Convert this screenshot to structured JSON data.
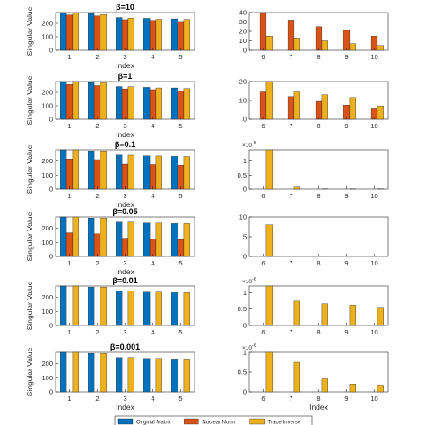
{
  "colors": {
    "original": "#0072BD",
    "nuclear": "#D95319",
    "trace": "#EDB120",
    "axis": "#262626"
  },
  "legend": [
    "Original Matrix",
    "Nuclear Norm",
    "Trace Inverse"
  ],
  "chart_data": [
    {
      "type": "bar",
      "title": "β=10",
      "ylabel": "Singular Value",
      "xlabel": "Index",
      "categories": [
        "1",
        "2",
        "3",
        "4",
        "5"
      ],
      "ylim": [
        0,
        280
      ],
      "yticks": [
        0,
        100,
        200
      ],
      "series": [
        {
          "name": "Original Matrix",
          "values": [
            280,
            272,
            243,
            237,
            233
          ]
        },
        {
          "name": "Nuclear Norm",
          "values": [
            262,
            255,
            227,
            222,
            214
          ]
        },
        {
          "name": "Trace Inverse",
          "values": [
            275,
            264,
            238,
            230,
            229
          ]
        }
      ]
    },
    {
      "type": "bar",
      "title": "",
      "ylabel": "",
      "xlabel": "",
      "categories": [
        "6",
        "7",
        "8",
        "9",
        "10"
      ],
      "ylim": [
        0,
        40
      ],
      "yticks": [
        0,
        10,
        20,
        30,
        40
      ],
      "series": [
        {
          "name": "Original Matrix",
          "values": [
            0,
            0,
            0,
            0,
            0
          ]
        },
        {
          "name": "Nuclear Norm",
          "values": [
            40,
            32,
            25,
            21,
            15
          ]
        },
        {
          "name": "Trace Inverse",
          "values": [
            15,
            13,
            10,
            7,
            5
          ]
        }
      ]
    },
    {
      "type": "bar",
      "title": "β=1",
      "ylabel": "Singular Value",
      "xlabel": "Index",
      "categories": [
        "1",
        "2",
        "3",
        "4",
        "5"
      ],
      "ylim": [
        0,
        280
      ],
      "yticks": [
        0,
        100,
        200
      ],
      "series": [
        {
          "name": "Original Matrix",
          "values": [
            280,
            272,
            243,
            237,
            233
          ]
        },
        {
          "name": "Nuclear Norm",
          "values": [
            258,
            250,
            226,
            220,
            212
          ]
        },
        {
          "name": "Trace Inverse",
          "values": [
            280,
            270,
            242,
            233,
            228
          ]
        }
      ]
    },
    {
      "type": "bar",
      "title": "",
      "ylabel": "",
      "xlabel": "",
      "categories": [
        "6",
        "7",
        "8",
        "9",
        "10"
      ],
      "ylim": [
        0,
        20
      ],
      "yticks": [
        0,
        10,
        20
      ],
      "series": [
        {
          "name": "Original Matrix",
          "values": [
            0,
            0,
            0,
            0,
            0
          ]
        },
        {
          "name": "Nuclear Norm",
          "values": [
            14.5,
            12,
            9.5,
            7.5,
            5.5
          ]
        },
        {
          "name": "Trace Inverse",
          "values": [
            20,
            14.5,
            13,
            11.5,
            7
          ]
        }
      ]
    },
    {
      "type": "bar",
      "title": "β=0.1",
      "ylabel": "Singular Value",
      "xlabel": "Index",
      "categories": [
        "1",
        "2",
        "3",
        "4",
        "5"
      ],
      "ylim": [
        0,
        280
      ],
      "yticks": [
        0,
        100,
        200
      ],
      "series": [
        {
          "name": "Original Matrix",
          "values": [
            280,
            272,
            243,
            237,
            233
          ]
        },
        {
          "name": "Nuclear Norm",
          "values": [
            215,
            210,
            178,
            175,
            170
          ]
        },
        {
          "name": "Trace Inverse",
          "values": [
            280,
            272,
            242,
            236,
            232
          ]
        }
      ]
    },
    {
      "type": "bar",
      "title": "",
      "ylabel": "",
      "xlabel": "",
      "exponent": "×10^-5",
      "categories": [
        "6",
        "7",
        "8",
        "9",
        "10"
      ],
      "ylim": [
        0,
        1.4
      ],
      "yticks": [
        0,
        0.5,
        1
      ],
      "series": [
        {
          "name": "Original Matrix",
          "values": [
            0,
            0,
            0,
            0,
            0
          ]
        },
        {
          "name": "Nuclear Norm",
          "values": [
            0,
            0,
            0,
            0,
            0
          ]
        },
        {
          "name": "Trace Inverse",
          "values": [
            1.4,
            0.07,
            0.01,
            0.01,
            0.01
          ]
        }
      ]
    },
    {
      "type": "bar",
      "title": "β=0.05",
      "ylabel": "Singular Value",
      "xlabel": "Index",
      "categories": [
        "1",
        "2",
        "3",
        "4",
        "5"
      ],
      "ylim": [
        0,
        280
      ],
      "yticks": [
        0,
        100,
        200
      ],
      "series": [
        {
          "name": "Original Matrix",
          "values": [
            280,
            272,
            243,
            237,
            233
          ]
        },
        {
          "name": "Nuclear Norm",
          "values": [
            168,
            160,
            130,
            125,
            120
          ]
        },
        {
          "name": "Trace Inverse",
          "values": [
            280,
            272,
            243,
            237,
            233
          ]
        }
      ]
    },
    {
      "type": "bar",
      "title": "",
      "ylabel": "",
      "xlabel": "",
      "categories": [
        "6",
        "7",
        "8",
        "9",
        "10"
      ],
      "ylim": [
        0,
        10
      ],
      "yticks": [
        0,
        5,
        10
      ],
      "series": [
        {
          "name": "Original Matrix",
          "values": [
            0,
            0,
            0,
            0,
            0
          ]
        },
        {
          "name": "Nuclear Norm",
          "values": [
            0,
            0,
            0,
            0,
            0
          ]
        },
        {
          "name": "Trace Inverse",
          "values": [
            8,
            0,
            0,
            0,
            0
          ]
        }
      ]
    },
    {
      "type": "bar",
      "title": "β=0.01",
      "ylabel": "Singular Value",
      "xlabel": "",
      "categories": [
        "1",
        "2",
        "3",
        "4",
        "5"
      ],
      "ylim": [
        0,
        280
      ],
      "yticks": [
        0,
        100,
        200
      ],
      "series": [
        {
          "name": "Original Matrix",
          "values": [
            280,
            272,
            243,
            237,
            233
          ]
        },
        {
          "name": "Nuclear Norm",
          "values": [
            0,
            0,
            0,
            0,
            0
          ]
        },
        {
          "name": "Trace Inverse",
          "values": [
            280,
            272,
            243,
            237,
            233
          ]
        }
      ]
    },
    {
      "type": "bar",
      "title": "",
      "ylabel": "",
      "xlabel": "",
      "exponent": "×10^-6",
      "categories": [
        "6",
        "7",
        "8",
        "9",
        "10"
      ],
      "ylim": [
        0,
        1.2
      ],
      "yticks": [
        0,
        0.5,
        1
      ],
      "series": [
        {
          "name": "Original Matrix",
          "values": [
            0,
            0,
            0,
            0,
            0
          ]
        },
        {
          "name": "Nuclear Norm",
          "values": [
            0,
            0,
            0,
            0,
            0
          ]
        },
        {
          "name": "Trace Inverse",
          "values": [
            1.2,
            0.74,
            0.66,
            0.62,
            0.55
          ]
        }
      ]
    },
    {
      "type": "bar",
      "title": "β=0.001",
      "ylabel": "Singular Value",
      "xlabel": "Index",
      "categories": [
        "1",
        "2",
        "3",
        "4",
        "5"
      ],
      "ylim": [
        0,
        280
      ],
      "yticks": [
        0,
        100,
        200
      ],
      "series": [
        {
          "name": "Original Matrix",
          "values": [
            280,
            272,
            243,
            237,
            233
          ]
        },
        {
          "name": "Nuclear Norm",
          "values": [
            0,
            0,
            0,
            0,
            0
          ]
        },
        {
          "name": "Trace Inverse",
          "values": [
            280,
            272,
            243,
            237,
            233
          ]
        }
      ]
    },
    {
      "type": "bar",
      "title": "",
      "ylabel": "",
      "xlabel": "Index",
      "exponent": "×10^-6",
      "categories": [
        "6",
        "7",
        "8",
        "9",
        "10"
      ],
      "ylim": [
        0,
        1
      ],
      "yticks": [
        0,
        0.5,
        1
      ],
      "series": [
        {
          "name": "Original Matrix",
          "values": [
            0,
            0,
            0,
            0,
            0
          ]
        },
        {
          "name": "Nuclear Norm",
          "values": [
            0,
            0,
            0,
            0,
            0
          ]
        },
        {
          "name": "Trace Inverse",
          "values": [
            1,
            0.75,
            0.33,
            0.2,
            0.17
          ]
        }
      ]
    }
  ]
}
